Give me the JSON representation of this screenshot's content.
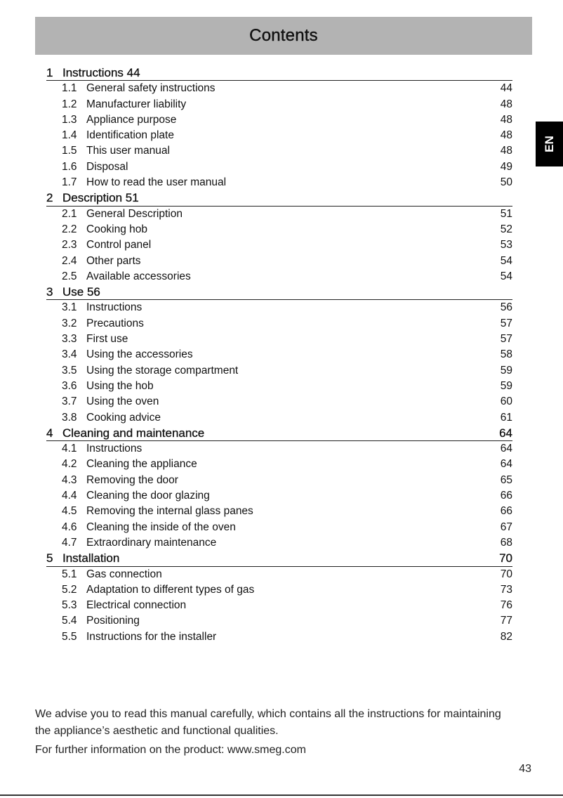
{
  "header": {
    "title": "Contents"
  },
  "side_tab": {
    "label": "EN"
  },
  "sections": [
    {
      "num": "1",
      "title": "Instructions 44",
      "page": "",
      "items": [
        {
          "num": "1.1",
          "title": "General safety instructions",
          "page": "44"
        },
        {
          "num": "1.2",
          "title": "Manufacturer liability",
          "page": "48"
        },
        {
          "num": "1.3",
          "title": "Appliance purpose",
          "page": "48"
        },
        {
          "num": "1.4",
          "title": "Identification plate",
          "page": "48"
        },
        {
          "num": "1.5",
          "title": "This user manual",
          "page": "48"
        },
        {
          "num": "1.6",
          "title": "Disposal",
          "page": "49"
        },
        {
          "num": "1.7",
          "title": "How to read the user manual",
          "page": "50"
        }
      ]
    },
    {
      "num": "2",
      "title": "Description 51",
      "page": "",
      "items": [
        {
          "num": "2.1",
          "title": "General Description",
          "page": "51"
        },
        {
          "num": "2.2",
          "title": "Cooking hob",
          "page": "52"
        },
        {
          "num": "2.3",
          "title": "Control panel",
          "page": "53"
        },
        {
          "num": "2.4",
          "title": "Other parts",
          "page": "54"
        },
        {
          "num": "2.5",
          "title": "Available accessories",
          "page": "54"
        }
      ]
    },
    {
      "num": "3",
      "title": "Use 56",
      "page": "",
      "items": [
        {
          "num": "3.1",
          "title": "Instructions",
          "page": "56"
        },
        {
          "num": "3.2",
          "title": "Precautions",
          "page": "57"
        },
        {
          "num": "3.3",
          "title": "First use",
          "page": "57"
        },
        {
          "num": "3.4",
          "title": "Using the accessories",
          "page": "58"
        },
        {
          "num": "3.5",
          "title": "Using the storage compartment",
          "page": "59"
        },
        {
          "num": "3.6",
          "title": "Using the hob",
          "page": "59"
        },
        {
          "num": "3.7",
          "title": "Using the oven",
          "page": "60"
        },
        {
          "num": "3.8",
          "title": "Cooking advice",
          "page": "61"
        }
      ]
    },
    {
      "num": "4",
      "title": "Cleaning and maintenance",
      "page": "64",
      "items": [
        {
          "num": "4.1",
          "title": "Instructions",
          "page": "64"
        },
        {
          "num": "4.2",
          "title": "Cleaning the appliance",
          "page": "64"
        },
        {
          "num": "4.3",
          "title": "Removing the door",
          "page": "65"
        },
        {
          "num": "4.4",
          "title": "Cleaning the door glazing",
          "page": "66"
        },
        {
          "num": "4.5",
          "title": "Removing the internal glass panes",
          "page": "66"
        },
        {
          "num": "4.6",
          "title": "Cleaning the inside of the oven",
          "page": "67"
        },
        {
          "num": "4.7",
          "title": "Extraordinary maintenance",
          "page": "68"
        }
      ]
    },
    {
      "num": "5",
      "title": "Installation",
      "page": "70",
      "items": [
        {
          "num": "5.1",
          "title": "Gas connection",
          "page": "70"
        },
        {
          "num": "5.2",
          "title": "Adaptation to different types of gas",
          "page": "73"
        },
        {
          "num": "5.3",
          "title": "Electrical connection",
          "page": "76"
        },
        {
          "num": "5.4",
          "title": "Positioning",
          "page": "77"
        },
        {
          "num": "5.5",
          "title": "Instructions for the installer",
          "page": "82"
        }
      ]
    }
  ],
  "footer": {
    "advice": "We advise you to read this manual carefully, which contains all the instructions for maintaining the appliance’s aesthetic and functional qualities.",
    "info": "For further information on the product: www.smeg.com"
  },
  "page_number": "43"
}
